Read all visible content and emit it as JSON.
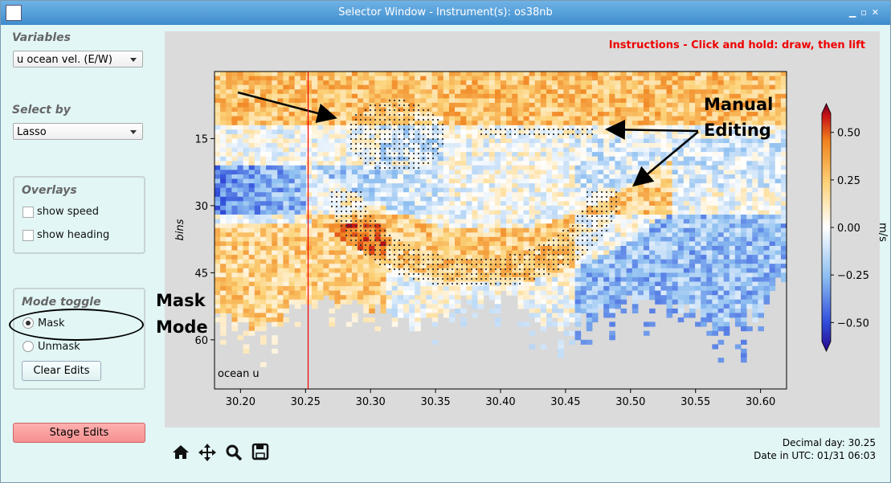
{
  "window": {
    "title": "Selector Window - Instrument(s): os38nb"
  },
  "sidebar": {
    "variables_label": "Variables",
    "variable": "u ocean vel. (E/W)",
    "select_by_label": "Select by",
    "select_by": "Lasso",
    "overlays_title": "Overlays",
    "overlays": [
      "show speed",
      "show heading"
    ],
    "mode_title": "Mode toggle",
    "modes": [
      "Mask",
      "Unmask"
    ],
    "clear_button": "Clear Edits",
    "stage_button": "Stage Edits"
  },
  "plot": {
    "instructions": "Instructions - Click and hold: draw, then lift",
    "ylabel": "bins",
    "inner_label": "ocean u",
    "xlim": [
      30.18,
      30.62
    ],
    "ylim": [
      71,
      0
    ],
    "xticks": [
      {
        "value": 30.2,
        "label": "30.20"
      },
      {
        "value": 30.25,
        "label": "30.25"
      },
      {
        "value": 30.3,
        "label": "30.30"
      },
      {
        "value": 30.35,
        "label": "30.35"
      },
      {
        "value": 30.4,
        "label": "30.40"
      },
      {
        "value": 30.45,
        "label": "30.45"
      },
      {
        "value": 30.5,
        "label": "30.50"
      },
      {
        "value": 30.55,
        "label": "30.55"
      },
      {
        "value": 30.6,
        "label": "30.60"
      }
    ],
    "yticks": [
      15,
      30,
      45,
      60
    ],
    "cursor_x": 30.252,
    "colorbar": {
      "label": "m/s",
      "clim": [
        -0.6,
        0.6
      ],
      "ticks": [
        {
          "value": 0.5,
          "label": "0.50"
        },
        {
          "value": 0.25,
          "label": "0.25"
        },
        {
          "value": 0,
          "label": "0.00"
        },
        {
          "value": -0.25,
          "label": "−0.25"
        },
        {
          "value": -0.5,
          "label": "−0.50"
        }
      ]
    }
  },
  "annotations": {
    "manual": [
      "Manual",
      "Editing"
    ],
    "mask": [
      "Mask",
      "Mode"
    ]
  },
  "status": {
    "decimal_day": "Decimal day: 30.25",
    "date": "Date in UTC: 01/31 06:03"
  }
}
